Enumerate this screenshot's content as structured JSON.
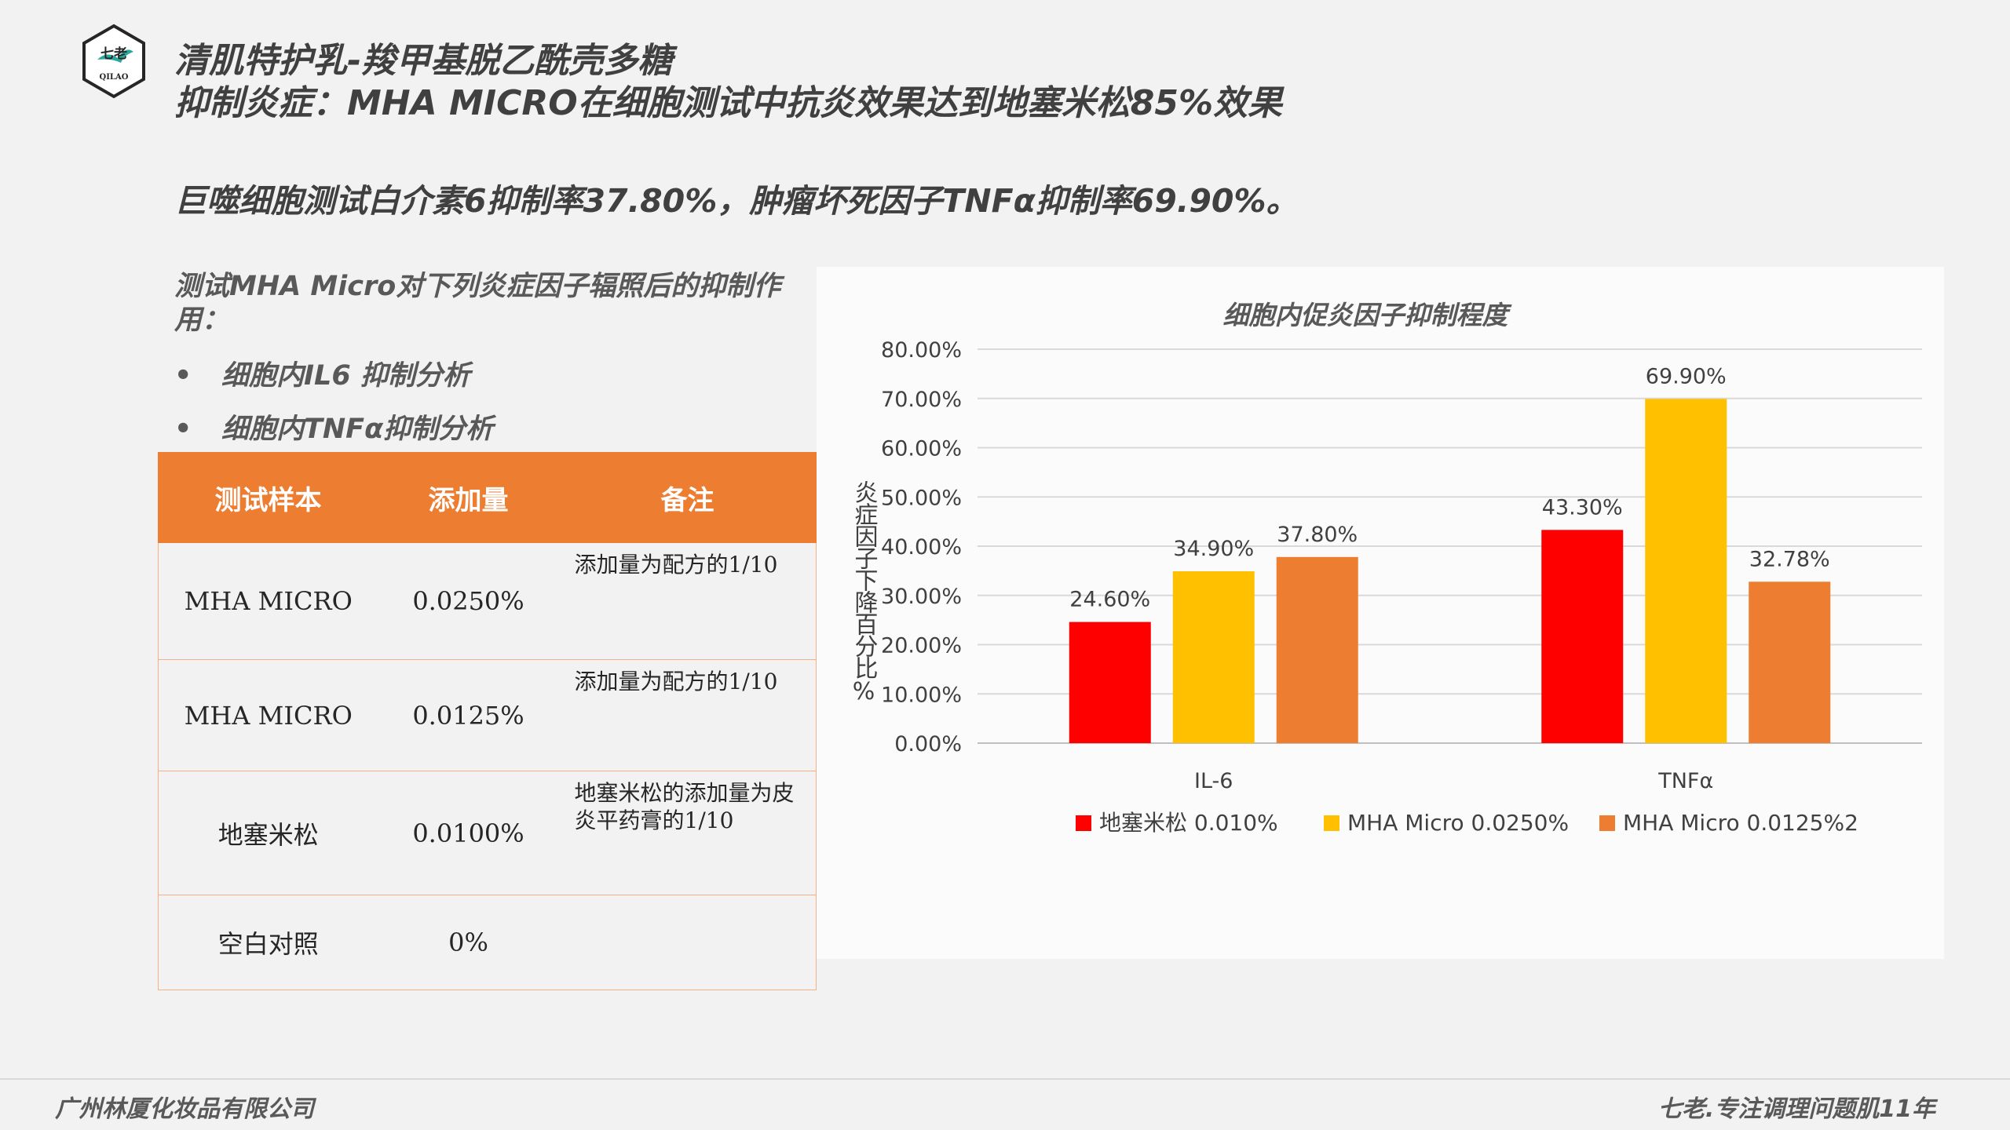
{
  "logo": {
    "text_top": "七老",
    "text_bottom": "QILAO"
  },
  "title": {
    "line1": "清肌特护乳-羧甲基脱乙酰壳多糖",
    "line2": "抑制炎症：MHA MICRO在细胞测试中抗炎效果达到地塞米松85%效果"
  },
  "subtitle": "巨噬细胞测试白介素6抑制率37.80%，肿瘤坏死因子TNFα抑制率69.90%。",
  "left_panel": {
    "intro": "测试MHA Micro对下列炎症因子辐照后的抑制作用：",
    "bullets": [
      "细胞内IL6 抑制分析",
      "细胞内TNFα抑制分析"
    ],
    "bullet_symbol": "•"
  },
  "table": {
    "headers": [
      "测试样本",
      "添加量",
      "备注"
    ],
    "rows": [
      {
        "sample": "MHA MICRO",
        "amount": "0.0250%",
        "note": "添加量为配方的1/10"
      },
      {
        "sample": "MHA MICRO",
        "amount": "0.0125%",
        "note": "添加量为配方的1/10"
      },
      {
        "sample": "地塞米松",
        "amount": "0.0100%",
        "note": "地塞米松的添加量为皮炎平药膏的1/10"
      },
      {
        "sample": "空白对照",
        "amount": "0%",
        "note": ""
      }
    ]
  },
  "chart_data": {
    "type": "bar",
    "title": "细胞内促炎因子抑制程度",
    "ylabel": "炎症因子下降百分比%",
    "xlabel": "",
    "categories": [
      "IL-6",
      "TNFα"
    ],
    "series": [
      {
        "name": "地塞米松 0.010%",
        "color": "#ff0000",
        "values": [
          24.6,
          43.3
        ],
        "labels": [
          "24.60%",
          "43.30%"
        ]
      },
      {
        "name": "MHA Micro 0.0250%",
        "color": "#ffc000",
        "values": [
          34.9,
          69.9
        ],
        "labels": [
          "34.90%",
          "69.90%"
        ]
      },
      {
        "name": "MHA Micro 0.0125%2",
        "color": "#ed7d31",
        "values": [
          37.8,
          32.78
        ],
        "labels": [
          "37.80%",
          "32.78%"
        ]
      }
    ],
    "ylim": [
      0,
      80
    ],
    "yticks": [
      0,
      10,
      20,
      30,
      40,
      50,
      60,
      70,
      80
    ],
    "ytick_labels": [
      "0.00%",
      "10.00%",
      "20.00%",
      "30.00%",
      "40.00%",
      "50.00%",
      "60.00%",
      "70.00%",
      "80.00%"
    ],
    "grid": true,
    "legend_position": "bottom"
  },
  "footer": {
    "left": "广州林厦化妆品有限公司",
    "right": "七老.专注调理问题肌11年"
  }
}
